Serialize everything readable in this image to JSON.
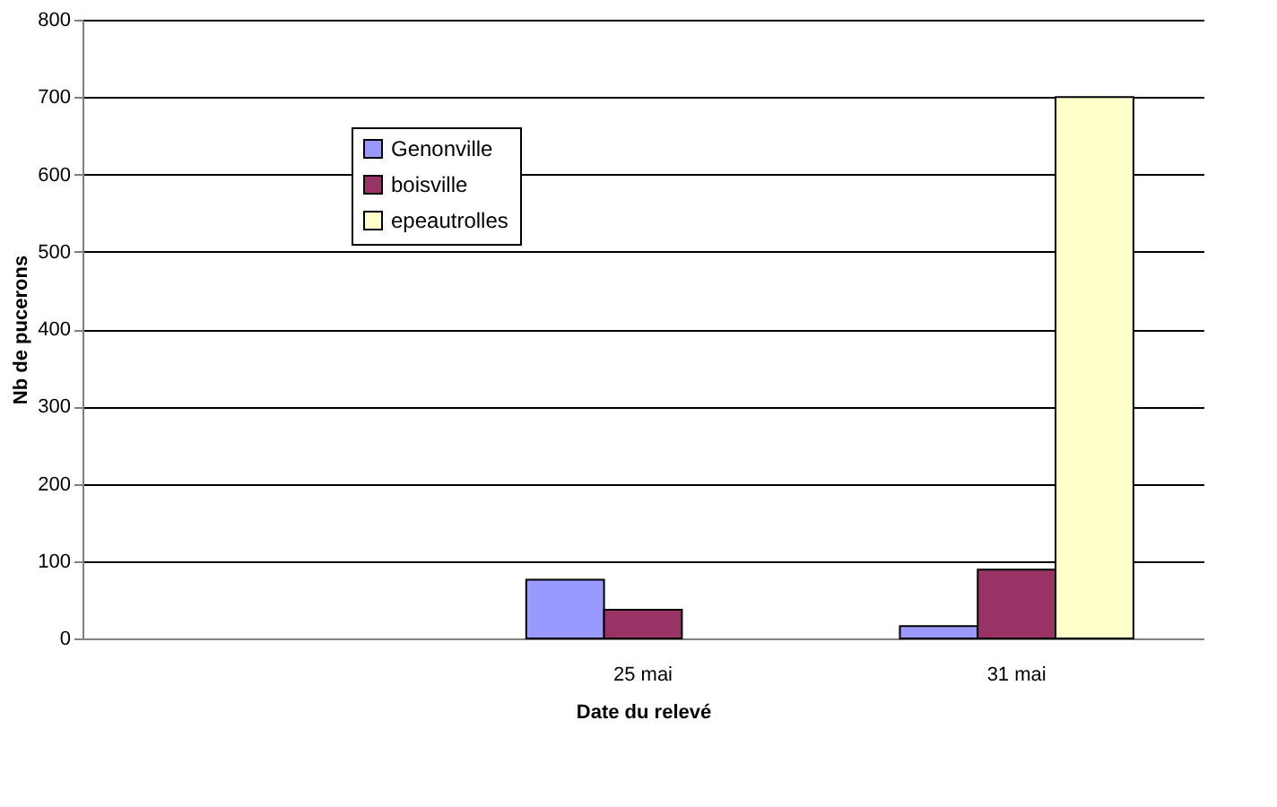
{
  "chart_data": {
    "type": "bar",
    "xlabel": "Date du relevé",
    "ylabel": "Nb de pucerons",
    "categories": [
      null,
      "25 mai",
      "31 mai"
    ],
    "series": [
      {
        "name": "Genonville",
        "color": "#9999ff",
        "values": [
          null,
          76,
          16
        ]
      },
      {
        "name": "boisville",
        "color": "#993366",
        "values": [
          null,
          37,
          89
        ]
      },
      {
        "name": "epeautrolles",
        "color": "#ffffcc",
        "values": [
          null,
          null,
          700
        ]
      }
    ],
    "ylim": [
      0,
      800
    ],
    "yticks": [
      0,
      100,
      200,
      300,
      400,
      500,
      600,
      700,
      800
    ],
    "grid": "y",
    "legend": "top left"
  }
}
